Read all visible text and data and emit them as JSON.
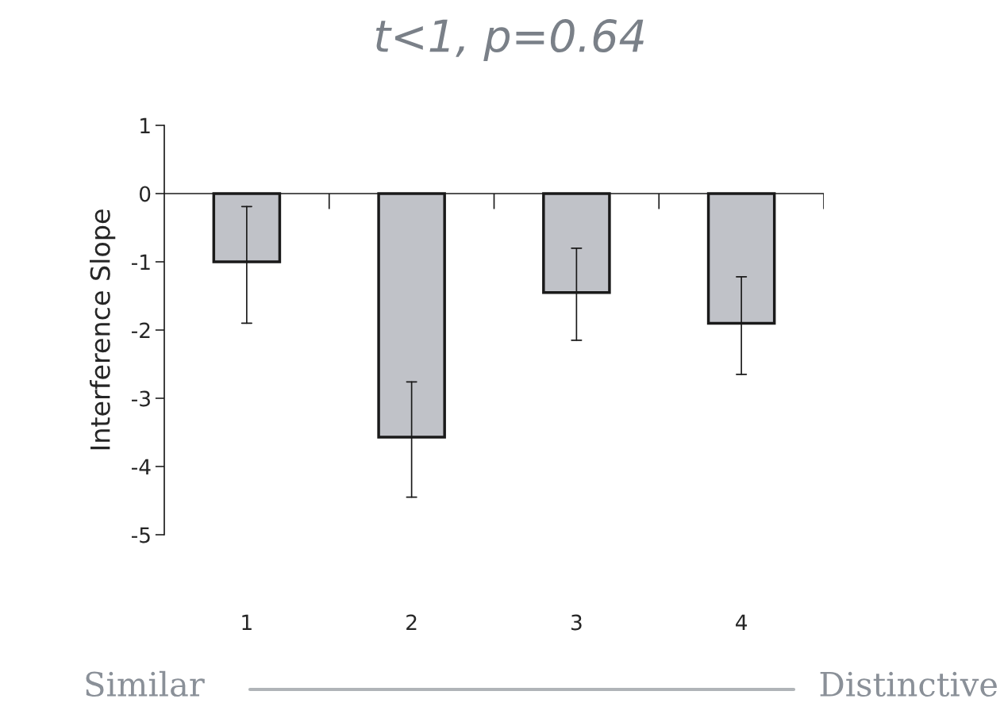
{
  "chart_data": {
    "type": "bar",
    "title": "t<1, p=0.64",
    "categories": [
      "1",
      "2",
      "3",
      "4"
    ],
    "values": [
      -1.0,
      -3.57,
      -1.45,
      -1.9
    ],
    "errors": [
      [
        -1.9,
        -0.19
      ],
      [
        -4.45,
        -2.76
      ],
      [
        -2.15,
        -0.8
      ],
      [
        -2.65,
        -1.22
      ]
    ],
    "color": "#c0c2c8",
    "ylabel": "Interference Slope",
    "ylim": [
      -5,
      1
    ],
    "yticks": [
      -5,
      -4,
      -3,
      -2,
      -1,
      0,
      1
    ],
    "grid": false,
    "ref_lines": [
      {
        "axis": "y",
        "value": 0,
        "color": "#1a1a1a"
      }
    ],
    "annotations": [
      "Similar",
      "Distinctive"
    ]
  }
}
